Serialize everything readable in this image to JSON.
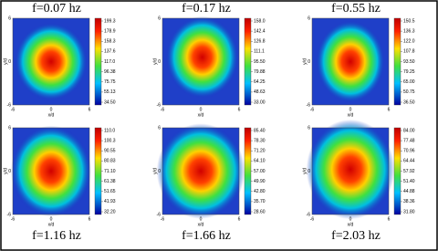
{
  "panels": [
    {
      "title": "f=0.07 hz",
      "xlabel": "x/d",
      "ylabel": "y/d",
      "xticks": [
        "-6",
        "0",
        "6"
      ],
      "yticks": [
        "-6",
        "0",
        "6"
      ],
      "colorbar_ticks": [
        "199.3",
        "178.9",
        "158.3",
        "137.6",
        "117.0",
        "96.38",
        "75.75",
        "55.13",
        "34.50"
      ]
    },
    {
      "title": "f=0.17 hz",
      "xlabel": "x/d",
      "ylabel": "y/d",
      "xticks": [
        "-6",
        "0",
        "6"
      ],
      "yticks": [
        "-6",
        "0",
        "6"
      ],
      "colorbar_ticks": [
        "158.0",
        "142.4",
        "126.8",
        "111.1",
        "95.50",
        "79.88",
        "64.25",
        "48.63",
        "33.00"
      ]
    },
    {
      "title": "f=0.55 hz",
      "xlabel": "x/d",
      "ylabel": "y/d",
      "xticks": [
        "-6",
        "0",
        "6"
      ],
      "yticks": [
        "-6",
        "0",
        "6"
      ],
      "colorbar_ticks": [
        "150.5",
        "136.3",
        "122.0",
        "107.8",
        "93.50",
        "79.25",
        "65.00",
        "50.75",
        "36.50"
      ]
    },
    {
      "title": "f=1.16 hz",
      "xlabel": "x/d",
      "ylabel": "y/d",
      "xticks": [
        "-6",
        "0",
        "6"
      ],
      "yticks": [
        "-6",
        "0",
        "6"
      ],
      "colorbar_ticks": [
        "110.0",
        "100.3",
        "90.55",
        "80.83",
        "71.10",
        "61.38",
        "51.65",
        "41.93",
        "32.20"
      ]
    },
    {
      "title": "f=1.66 hz",
      "xlabel": "x/d",
      "ylabel": "y/d",
      "xticks": [
        "-6",
        "0",
        "6"
      ],
      "yticks": [
        "-6",
        "0",
        "6"
      ],
      "colorbar_ticks": [
        "85.40",
        "78.30",
        "71.20",
        "64.10",
        "57.00",
        "49.90",
        "42.80",
        "35.70",
        "28.60"
      ]
    },
    {
      "title": "f=2.03 hz",
      "xlabel": "x/d",
      "ylabel": "y/d",
      "xticks": [
        "-6",
        "0",
        "6"
      ],
      "yticks": [
        "-6",
        "0",
        "6"
      ],
      "colorbar_ticks": [
        "84.00",
        "77.48",
        "70.96",
        "64.44",
        "57.92",
        "51.40",
        "44.88",
        "38.36",
        "31.80"
      ]
    }
  ]
}
